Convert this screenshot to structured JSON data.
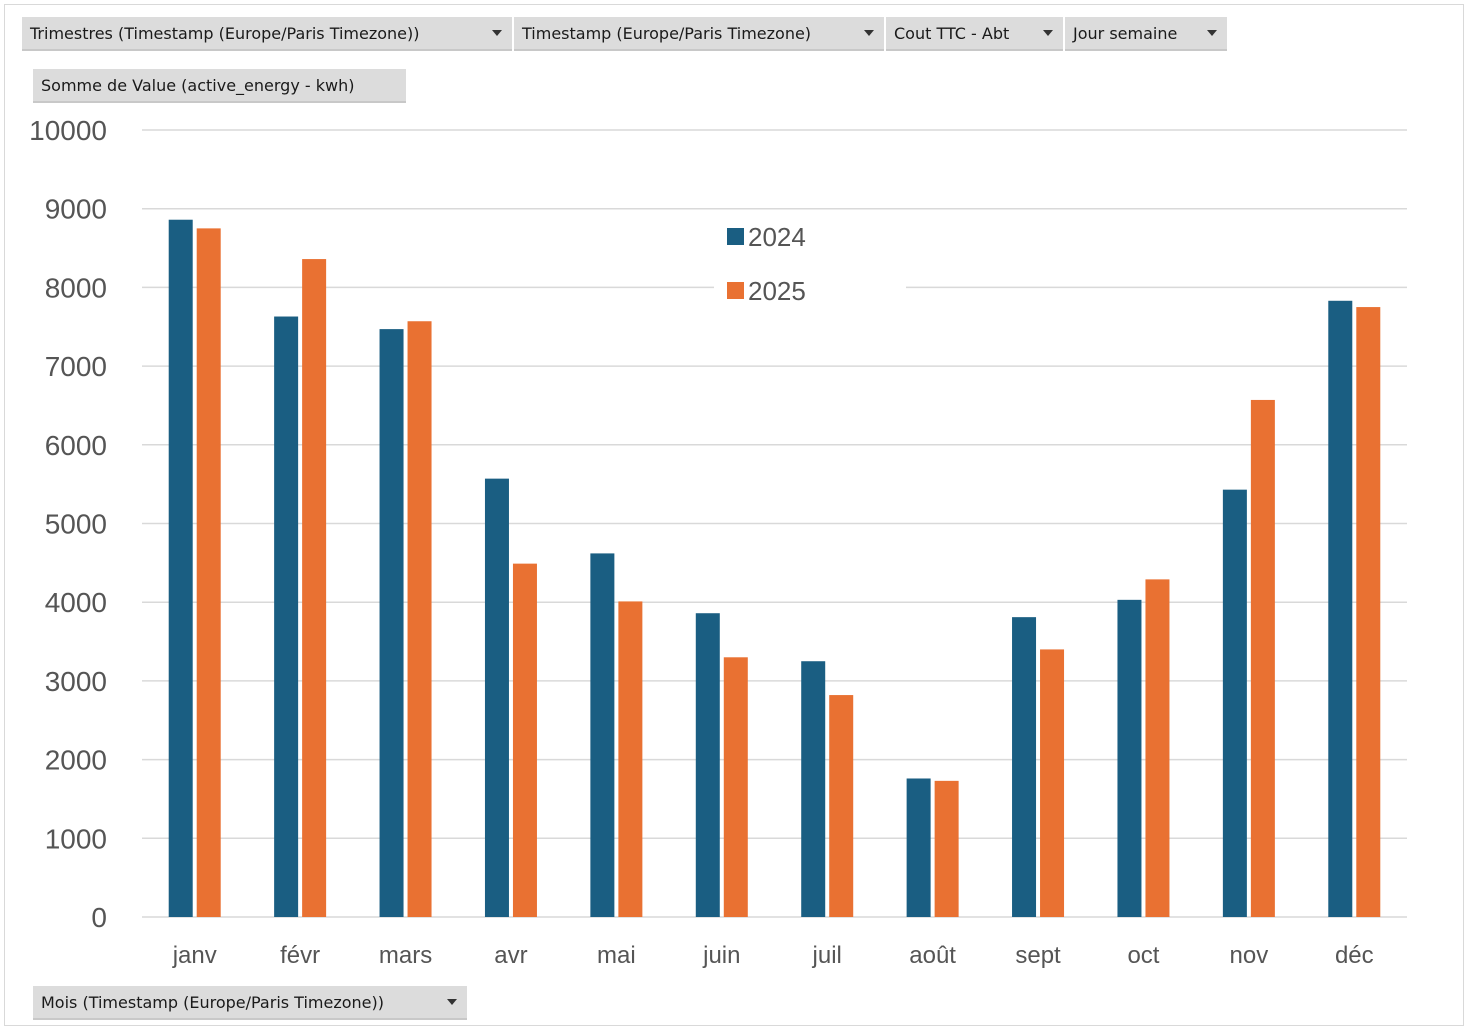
{
  "filters": [
    {
      "label": "Trimestres (Timestamp (Europe/Paris Timezone))"
    },
    {
      "label": "Timestamp (Europe/Paris Timezone)"
    },
    {
      "label": "Cout TTC - Abt"
    },
    {
      "label": "Jour semaine"
    }
  ],
  "value_field": {
    "label": "Somme de Value (active_energy - kwh)"
  },
  "axis_field": {
    "label": "Mois (Timestamp (Europe/Paris Timezone))"
  },
  "icons": {
    "dropdown": "chevron-down-icon"
  },
  "chart_data": {
    "type": "bar",
    "title": "",
    "xlabel": "",
    "ylabel": "",
    "categories": [
      "janv",
      "févr",
      "mars",
      "avr",
      "mai",
      "juin",
      "juil",
      "août",
      "sept",
      "oct",
      "nov",
      "déc"
    ],
    "series": [
      {
        "name": "2024",
        "color": "#1a5e82",
        "values": [
          8860,
          7630,
          7470,
          5570,
          4620,
          3860,
          3250,
          1760,
          3810,
          4030,
          5430,
          7830
        ]
      },
      {
        "name": "2025",
        "color": "#e97132",
        "values": [
          8750,
          8360,
          7570,
          4490,
          4010,
          3300,
          2820,
          1730,
          3400,
          4290,
          6570,
          7750
        ]
      }
    ],
    "ylim": [
      0,
      10000
    ],
    "yticks": [
      "0",
      "1000",
      "2000",
      "3000",
      "4000",
      "5000",
      "6000",
      "7000",
      "8000",
      "9000",
      "10000"
    ],
    "grid": true,
    "legend_position": "top-center"
  }
}
